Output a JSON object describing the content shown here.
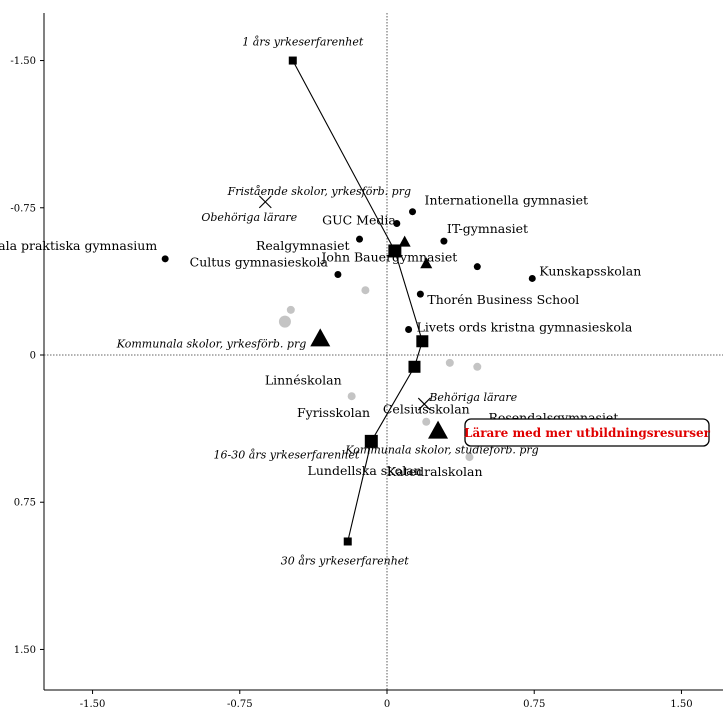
{
  "chart_data": {
    "type": "scatter",
    "title": "",
    "xlabel": "",
    "ylabel": "",
    "xlim": [
      -1.75,
      1.7
    ],
    "ylim": [
      -1.75,
      1.7
    ],
    "x_ticks": [
      -1.5,
      -0.75,
      0,
      0.75,
      1.5
    ],
    "y_ticks": [
      -1.5,
      -0.75,
      0,
      0.75,
      1.5
    ],
    "x_tick_labels": [
      "-1.50",
      "-0.75",
      "0",
      "0.75",
      "1.50"
    ],
    "y_tick_labels": [
      "-1.50",
      "-0.75",
      "0",
      "0.75",
      "1.50"
    ],
    "y_axis_inverted": true,
    "experience_path": {
      "points": [
        {
          "label": "1 års yrkeserfarenhet",
          "x": -0.48,
          "y": -1.5
        },
        {
          "label": "",
          "x": 0.04,
          "y": -0.53
        },
        {
          "label": "",
          "x": 0.18,
          "y": -0.07
        },
        {
          "label": "",
          "x": 0.14,
          "y": 0.06
        },
        {
          "label": "16-30 års yrkeserfarenhet",
          "x": -0.08,
          "y": 0.44
        },
        {
          "label": "30 års yrkeserfarenhet",
          "x": -0.2,
          "y": 0.95
        }
      ]
    },
    "schools": [
      {
        "label": "Internationella gymnasiet",
        "x": 0.13,
        "y": -0.73
      },
      {
        "label": "GUC Media",
        "x": 0.05,
        "y": -0.67
      },
      {
        "label": "IT-gymnasiet",
        "x": 0.29,
        "y": -0.58
      },
      {
        "label": "Realgymnasiet",
        "x": -0.14,
        "y": -0.59
      },
      {
        "label": "Uppsala praktiska gymnasium",
        "x": -1.13,
        "y": -0.49
      },
      {
        "label": "John Bauergymnasiet",
        "x": 0.46,
        "y": -0.45
      },
      {
        "label": "Kunskapsskolan",
        "x": 0.74,
        "y": -0.39
      },
      {
        "label": "Cultus gymnasieskola",
        "x": -0.25,
        "y": -0.41
      },
      {
        "label": "Thorén Business School",
        "x": 0.17,
        "y": -0.31
      },
      {
        "label": "Livets ords kristna gymnasieskola",
        "x": 0.11,
        "y": -0.13
      }
    ],
    "other_schools": [
      {
        "label": "Linnéskolan",
        "x": -0.18,
        "y": 0.13
      },
      {
        "label": "Celsiusskolan",
        "x": 0.19,
        "y": 0.34
      },
      {
        "label": "Rosendalsgymnasiet",
        "x": 0.42,
        "y": 0.27
      },
      {
        "label": "Fyrisskolan",
        "x": -0.03,
        "y": 0.28
      },
      {
        "label": "Lundellska skolan",
        "x": -0.15,
        "y": 0.48
      },
      {
        "label": "Katedralskolan",
        "x": 0.3,
        "y": 0.57
      }
    ],
    "grey_points": [
      {
        "x": -0.49,
        "y": -0.23,
        "size": "small"
      },
      {
        "x": -0.52,
        "y": -0.17,
        "size": "large"
      },
      {
        "x": -0.11,
        "y": -0.33,
        "size": "small"
      },
      {
        "x": -0.18,
        "y": 0.21,
        "size": "small"
      },
      {
        "x": 0.32,
        "y": 0.04,
        "size": "small"
      },
      {
        "x": 0.46,
        "y": 0.06,
        "size": "small"
      },
      {
        "x": 0.2,
        "y": 0.34,
        "size": "small"
      },
      {
        "x": 0.42,
        "y": 0.52,
        "size": "small"
      }
    ],
    "triangles": [
      {
        "label": "Kommunala skolor, yrkesförb. prg",
        "x": -0.34,
        "y": -0.09,
        "size": "large"
      },
      {
        "label": "",
        "x": 0.09,
        "y": -0.58,
        "size": "small"
      },
      {
        "label": "",
        "x": 0.2,
        "y": -0.47,
        "size": "small"
      },
      {
        "label": "Kommunala skolor, studieförb. prg",
        "x": 0.26,
        "y": 0.38,
        "size": "large"
      }
    ],
    "crosses": [
      {
        "label": "Fristående skolor, yrkesförb. prg",
        "x": -0.62,
        "y": -0.78
      },
      {
        "label": "Obehöriga lärare",
        "x": -0.62,
        "y": -0.78
      },
      {
        "label": "Behöriga lärare",
        "x": 0.19,
        "y": 0.25
      }
    ],
    "callout": {
      "text": "Lärare med mer utbildningsresurser"
    }
  }
}
